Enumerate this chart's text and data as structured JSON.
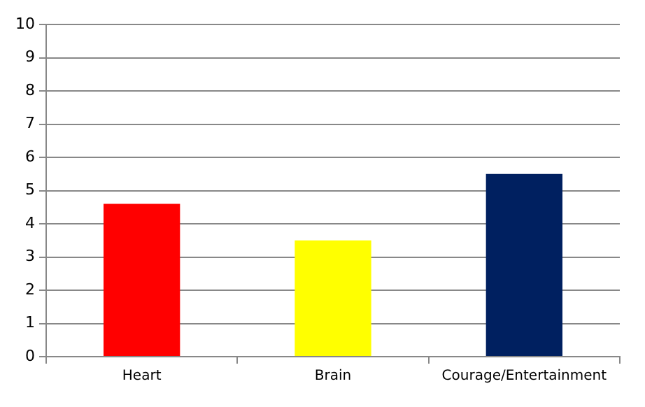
{
  "chart_data": {
    "type": "bar",
    "categories": [
      "Heart",
      "Brain",
      "Courage/Entertainment"
    ],
    "values": [
      4.6,
      3.5,
      5.5
    ],
    "colors": [
      "#ff0000",
      "#ffff00",
      "#002060"
    ],
    "ylim": [
      0,
      10
    ],
    "yticks": [
      0,
      1,
      2,
      3,
      4,
      5,
      6,
      7,
      8,
      9,
      10
    ],
    "grid": "y",
    "legend": false
  }
}
